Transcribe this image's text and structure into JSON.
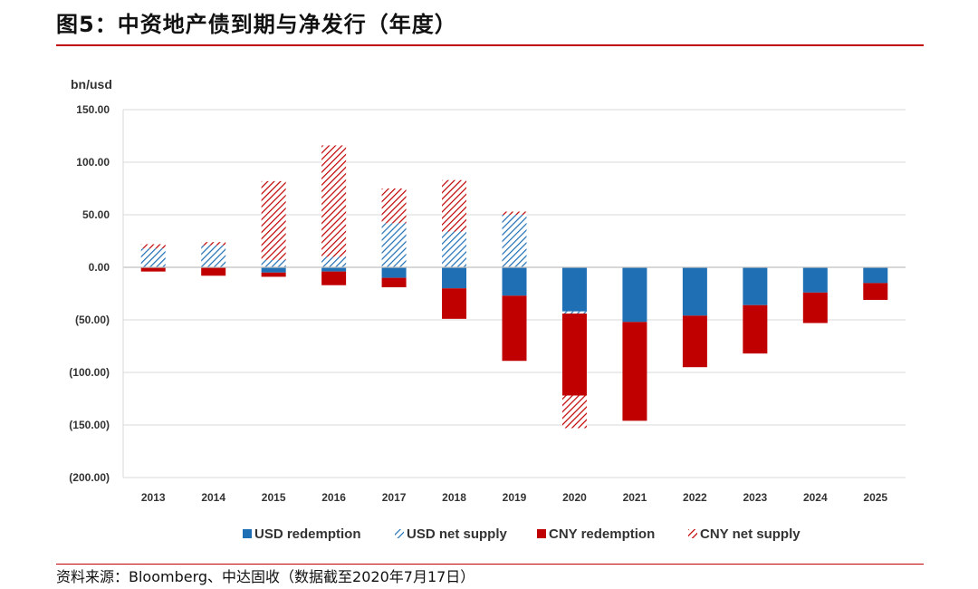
{
  "title": "图5：中资地产债到期与净发行（年度）",
  "source": "资料来源：Bloomberg、中达固收（数据截至2020年7月17日）",
  "chart_data": {
    "type": "bar",
    "stacked": true,
    "ylabel": "bn/usd",
    "ylim": [
      -200,
      150
    ],
    "yticks": [
      150,
      100,
      50,
      0,
      -50,
      -100,
      -150,
      -200
    ],
    "ytick_labels": [
      "150.00",
      "100.00",
      "50.00",
      "0.00",
      "(50.00)",
      "(100.00)",
      "(150.00)",
      "(200.00)"
    ],
    "grid": true,
    "legend_position": "bottom",
    "categories": [
      "2013",
      "2014",
      "2015",
      "2016",
      "2017",
      "2018",
      "2019",
      "2020",
      "2021",
      "2022",
      "2023",
      "2024",
      "2025"
    ],
    "series": [
      {
        "name": "USD redemption",
        "key": "usd_red",
        "color": "#1f6fb5",
        "pattern": "solid",
        "values": [
          0,
          0,
          -5,
          -4,
          -10,
          -20,
          -27,
          -42,
          -52,
          -46,
          -36,
          -24,
          -15
        ]
      },
      {
        "name": "USD net supply",
        "key": "usd_net",
        "color": "#1f6fb5",
        "pattern": "hatch",
        "values": [
          18,
          21,
          7,
          10,
          42,
          34,
          50,
          -2,
          0,
          0,
          0,
          0,
          0
        ]
      },
      {
        "name": "CNY redemption",
        "key": "cny_red",
        "color": "#c00000",
        "pattern": "solid",
        "values": [
          -4,
          -8,
          -4,
          -13,
          -9,
          -29,
          -62,
          -78,
          -94,
          -49,
          -46,
          -29,
          -16
        ]
      },
      {
        "name": "CNY net supply",
        "key": "cny_net",
        "color": "#c00000",
        "pattern": "hatch",
        "values": [
          4,
          3,
          75,
          106,
          33,
          49,
          3,
          -31,
          0,
          0,
          0,
          0,
          0
        ]
      }
    ]
  }
}
